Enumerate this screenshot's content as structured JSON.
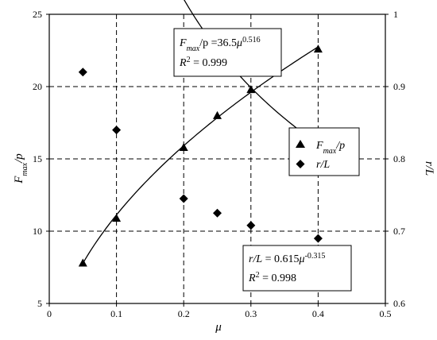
{
  "chart_data": {
    "type": "scatter",
    "x_axis": {
      "label": "μ",
      "range": [
        0,
        0.5
      ],
      "ticks": [
        "0",
        "0.1",
        "0.2",
        "0.3",
        "0.4",
        "0.5"
      ]
    },
    "y_left": {
      "label_main": "F",
      "label_sub": "max",
      "label_tail": "/p",
      "range": [
        5,
        25
      ],
      "ticks": [
        "5",
        "10",
        "15",
        "20",
        "25"
      ]
    },
    "y_right": {
      "label": "r/L",
      "range": [
        0.6,
        1.0
      ],
      "ticks": [
        "0.6",
        "0.7",
        "0.8",
        "0.9",
        "1"
      ]
    },
    "grid": "dashed",
    "gridlines_x": [
      0.1,
      0.2,
      0.3,
      0.4
    ],
    "gridlines_y_left": [
      10,
      15,
      20
    ],
    "series": [
      {
        "name": "Fmax/p",
        "legend_main": "F",
        "legend_sub": "max",
        "legend_tail": "/p",
        "marker": "triangle",
        "axis": "left",
        "x": [
          0.05,
          0.1,
          0.2,
          0.25,
          0.3,
          0.4
        ],
        "y": [
          7.8,
          10.9,
          15.8,
          18.0,
          19.8,
          22.6
        ],
        "fit": {
          "coef": 36.5,
          "exp": 0.516
        }
      },
      {
        "name": "r/L",
        "legend_text": "r/L",
        "marker": "diamond",
        "axis": "right",
        "x": [
          0.05,
          0.1,
          0.2,
          0.25,
          0.3,
          0.4
        ],
        "y": [
          0.92,
          0.84,
          0.745,
          0.725,
          0.708,
          0.69
        ],
        "fit": {
          "coef": 0.615,
          "exp": -0.315
        }
      }
    ],
    "legend_position": "right",
    "annotations": [
      {
        "id": "fmax",
        "eq_main": "F",
        "eq_sub": "max",
        "eq_mid": "/p =36.5",
        "eq_var": "μ",
        "eq_exp": "0.516",
        "r2_label": "R",
        "r2_exp": "2",
        "r2_value": " = 0.999"
      },
      {
        "id": "rl",
        "eq_main": "r/L",
        "eq_mid": " = 0.615",
        "eq_var": "μ",
        "eq_exp": "-0.315",
        "r2_label": "R",
        "r2_exp": "2",
        "r2_value": " = 0.998"
      }
    ]
  }
}
